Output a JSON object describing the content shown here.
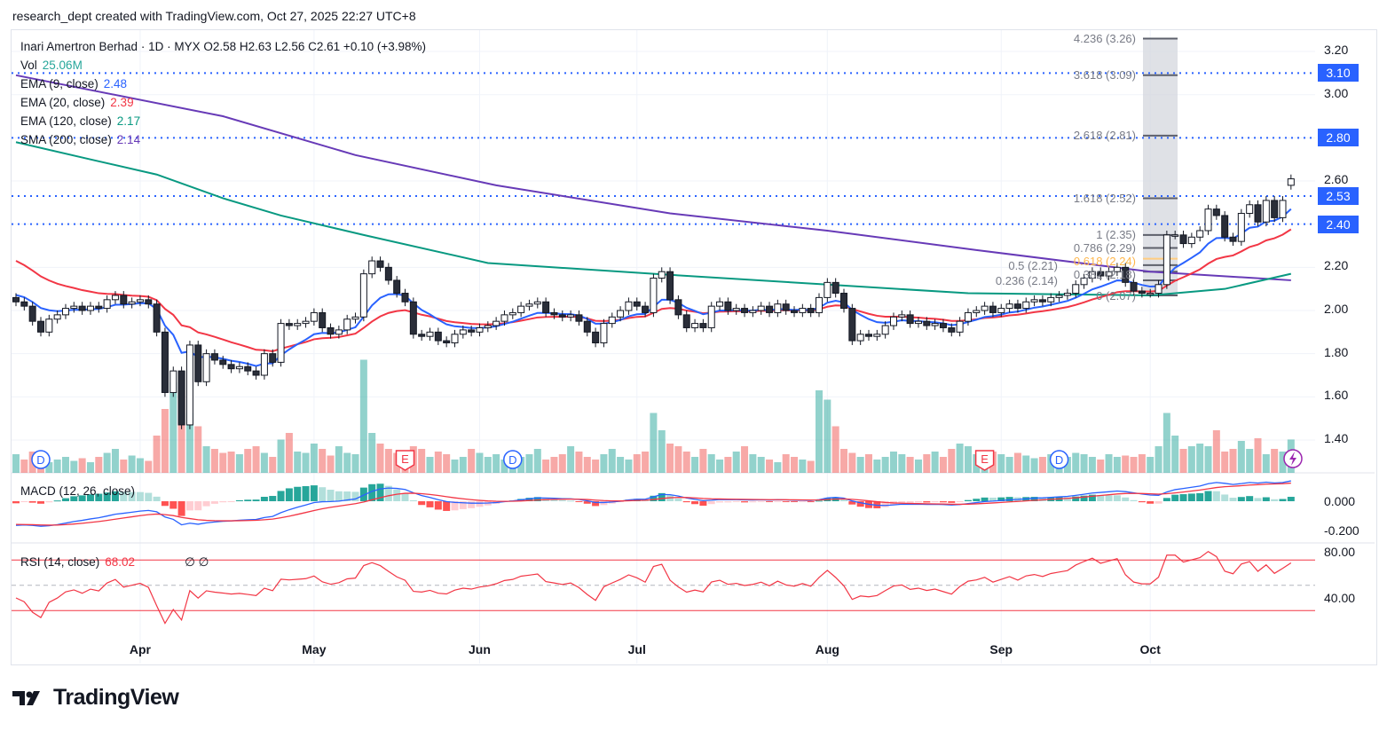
{
  "header": {
    "attribution": "research_dept created with TradingView.com, Oct 27, 2025 22:27 UTC+8"
  },
  "legend": {
    "symbol_line": "Inari Amertron Berhad · 1D · MYX  O2.58  H2.63  L2.56  C2.61  +0.10 (+3.98%)",
    "vol_label": "Vol",
    "vol_value": "25.06M",
    "ema9_label": "EMA (9, close)",
    "ema9_value": "2.48",
    "ema20_label": "EMA (20, close)",
    "ema20_value": "2.39",
    "ema120_label": "EMA (120, close)",
    "ema120_value": "2.17",
    "sma200_label": "SMA (200, close)",
    "sma200_value": "2.14",
    "macd_label": "MACD (12, 26, close)",
    "rsi_label": "RSI (14, close)",
    "rsi_value": "68.02",
    "rsi_extra": "∅  ∅"
  },
  "colors": {
    "ema9": "#2962ff",
    "ema20": "#f23645",
    "ema120": "#089981",
    "sma200": "#673ab7",
    "up_vol": "#26a69a",
    "down_vol": "#ef5350",
    "accent": "#2962ff"
  },
  "price_axis": {
    "ticks": [
      "3.20",
      "3.00",
      "2.60",
      "2.20",
      "2.00",
      "1.80",
      "1.60",
      "1.40"
    ],
    "highlighted": [
      "3.10",
      "2.80",
      "2.53",
      "2.40"
    ]
  },
  "macd_axis": {
    "ticks": [
      "0.000",
      "-0.200"
    ]
  },
  "rsi_axis": {
    "ticks": [
      "80.00",
      "40.00"
    ]
  },
  "time_axis": {
    "months": [
      "Apr",
      "May",
      "Jun",
      "Jul",
      "Aug",
      "Sep",
      "Oct"
    ]
  },
  "fib_levels": [
    {
      "label": "4.236 (3.26)",
      "price": 3.26
    },
    {
      "label": "3.618 (3.09)",
      "price": 3.09
    },
    {
      "label": "2.618 (2.81)",
      "price": 2.81
    },
    {
      "label": "1.618 (2.52)",
      "price": 2.52
    },
    {
      "label": "1 (2.35)",
      "price": 2.35
    },
    {
      "label": "0.786 (2.29)",
      "price": 2.29
    },
    {
      "label": "0.618 (2.24)",
      "price": 2.24
    },
    {
      "label": "0.5 (2.21)",
      "price": 2.21
    },
    {
      "label": "0.382 (2.18)",
      "price": 2.18
    },
    {
      "label": "0.236 (2.14)",
      "price": 2.14
    },
    {
      "label": "0 (2.07)",
      "price": 2.07
    }
  ],
  "events": {
    "dividend": "D",
    "earnings": "E"
  },
  "footer": {
    "brand": "TradingView"
  },
  "chart_data": {
    "type": "candlestick",
    "title": "Inari Amertron Berhad · 1D · MYX",
    "ylim": [
      1.3,
      3.3
    ],
    "last_ohlc": {
      "open": 2.58,
      "high": 2.63,
      "low": 2.56,
      "close": 2.61
    },
    "closes": [
      2.04,
      2.02,
      1.95,
      1.9,
      1.96,
      1.98,
      2.01,
      2.02,
      2.0,
      2.02,
      2.01,
      2.05,
      2.07,
      2.03,
      2.04,
      2.05,
      2.03,
      1.9,
      1.62,
      1.72,
      1.47,
      1.84,
      1.67,
      1.8,
      1.77,
      1.75,
      1.73,
      1.74,
      1.72,
      1.7,
      1.8,
      1.76,
      1.94,
      1.93,
      1.94,
      1.95,
      1.99,
      1.92,
      1.89,
      1.91,
      1.96,
      1.97,
      2.17,
      2.23,
      2.2,
      2.14,
      2.08,
      2.04,
      1.89,
      1.88,
      1.9,
      1.86,
      1.85,
      1.89,
      1.91,
      1.9,
      1.92,
      1.93,
      1.95,
      1.98,
      1.99,
      2.02,
      2.03,
      2.04,
      1.99,
      1.98,
      1.97,
      1.98,
      1.95,
      1.9,
      1.85,
      1.94,
      1.97,
      2.0,
      2.04,
      2.02,
      1.99,
      2.15,
      2.18,
      2.05,
      1.98,
      1.92,
      1.94,
      1.92,
      2.02,
      2.04,
      2.0,
      2.01,
      1.99,
      2.0,
      2.02,
      1.99,
      2.03,
      2.0,
      1.99,
      2.01,
      1.99,
      2.06,
      2.13,
      2.08,
      2.01,
      1.86,
      1.89,
      1.88,
      1.89,
      1.93,
      1.97,
      1.98,
      1.94,
      1.95,
      1.93,
      1.94,
      1.92,
      1.9,
      1.95,
      1.99,
      2.0,
      2.02,
      1.99,
      2.01,
      2.03,
      2.01,
      2.04,
      2.05,
      2.04,
      2.06,
      2.07,
      2.08,
      2.12,
      2.15,
      2.18,
      2.16,
      2.18,
      2.2,
      2.13,
      2.09,
      2.08,
      2.08,
      2.12,
      2.35,
      2.35,
      2.31,
      2.34,
      2.37,
      2.47,
      2.44,
      2.34,
      2.32,
      2.45,
      2.49,
      2.41,
      2.51,
      2.43,
      2.51,
      2.61
    ],
    "volume_millions": [
      14,
      10,
      16,
      12,
      8,
      10,
      12,
      9,
      11,
      8,
      12,
      15,
      18,
      10,
      13,
      11,
      9,
      28,
      48,
      68,
      62,
      45,
      35,
      20,
      18,
      15,
      16,
      14,
      18,
      20,
      15,
      12,
      25,
      30,
      16,
      15,
      22,
      18,
      13,
      20,
      15,
      14,
      85,
      30,
      22,
      18,
      15,
      14,
      20,
      18,
      12,
      16,
      14,
      10,
      12,
      18,
      15,
      12,
      14,
      10,
      16,
      12,
      14,
      18,
      10,
      12,
      14,
      20,
      16,
      12,
      10,
      14,
      18,
      12,
      10,
      14,
      16,
      45,
      32,
      22,
      20,
      16,
      12,
      18,
      14,
      10,
      12,
      16,
      20,
      14,
      12,
      10,
      8,
      14,
      12,
      10,
      9,
      62,
      55,
      35,
      18,
      15,
      12,
      14,
      10,
      12,
      16,
      14,
      12,
      10,
      14,
      16,
      12,
      18,
      22,
      20,
      14,
      12,
      16,
      14,
      12,
      15,
      13,
      11,
      12,
      14,
      10,
      12,
      15,
      14,
      12,
      10,
      14,
      12,
      13,
      12,
      14,
      12,
      20,
      45,
      28,
      18,
      20,
      22,
      20,
      32,
      16,
      18,
      24,
      18,
      26,
      14,
      18,
      16,
      25.06
    ],
    "ema120_points": [
      [
        0,
        2.78
      ],
      [
        9,
        2.7
      ],
      [
        17,
        2.63
      ],
      [
        25,
        2.52
      ],
      [
        32,
        2.44
      ],
      [
        42,
        2.35
      ],
      [
        57,
        2.22
      ],
      [
        77,
        2.17
      ],
      [
        98,
        2.12
      ],
      [
        115,
        2.08
      ],
      [
        137,
        2.07
      ],
      [
        146,
        2.1
      ],
      [
        154,
        2.17
      ]
    ],
    "sma200_points": [
      [
        0,
        3.09
      ],
      [
        25,
        2.9
      ],
      [
        41,
        2.72
      ],
      [
        58,
        2.58
      ],
      [
        79,
        2.45
      ],
      [
        98,
        2.37
      ],
      [
        116,
        2.28
      ],
      [
        137,
        2.18
      ],
      [
        154,
        2.14
      ]
    ],
    "dividend_bars": [
      3,
      60,
      126
    ],
    "earnings_bars": [
      47,
      117
    ],
    "month_start_bars": [
      15,
      36,
      56,
      75,
      98,
      119,
      137
    ]
  }
}
